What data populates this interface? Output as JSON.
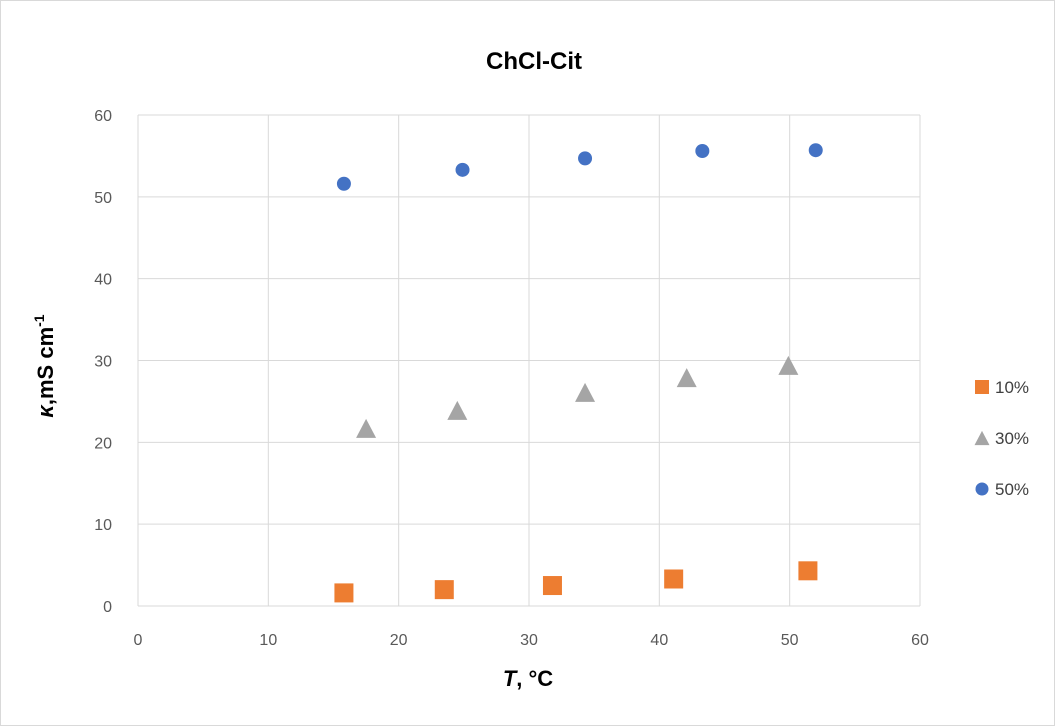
{
  "chart_data": {
    "type": "scatter",
    "title": "ChCl-Cit",
    "xlabel_var": "T",
    "xlabel_unit": ", °C",
    "ylabel_var": "κ",
    "ylabel_unit": ",mS cm",
    "ylabel_sup": "-1",
    "xlim": [
      0,
      60
    ],
    "ylim": [
      0,
      60
    ],
    "xticks": [
      "0",
      "10",
      "20",
      "30",
      "40",
      "50",
      "60"
    ],
    "yticks": [
      "0",
      "10",
      "20",
      "30",
      "40",
      "50",
      "60"
    ],
    "grid": true,
    "legend": "right",
    "series": [
      {
        "name": "10%",
        "marker": "square",
        "color": "#ed7d31",
        "x": [
          15.8,
          23.5,
          31.8,
          41.1,
          51.4
        ],
        "y": [
          1.6,
          2.0,
          2.5,
          3.3,
          4.3
        ]
      },
      {
        "name": "30%",
        "marker": "triangle",
        "color": "#a5a5a5",
        "x": [
          17.5,
          24.5,
          34.3,
          42.1,
          49.9
        ],
        "y": [
          21.7,
          23.9,
          26.1,
          27.9,
          29.4
        ]
      },
      {
        "name": "50%",
        "marker": "circle",
        "color": "#4472c4",
        "x": [
          15.8,
          24.9,
          34.3,
          43.3,
          52.0
        ],
        "y": [
          51.6,
          53.3,
          54.7,
          55.6,
          55.7
        ]
      }
    ]
  }
}
